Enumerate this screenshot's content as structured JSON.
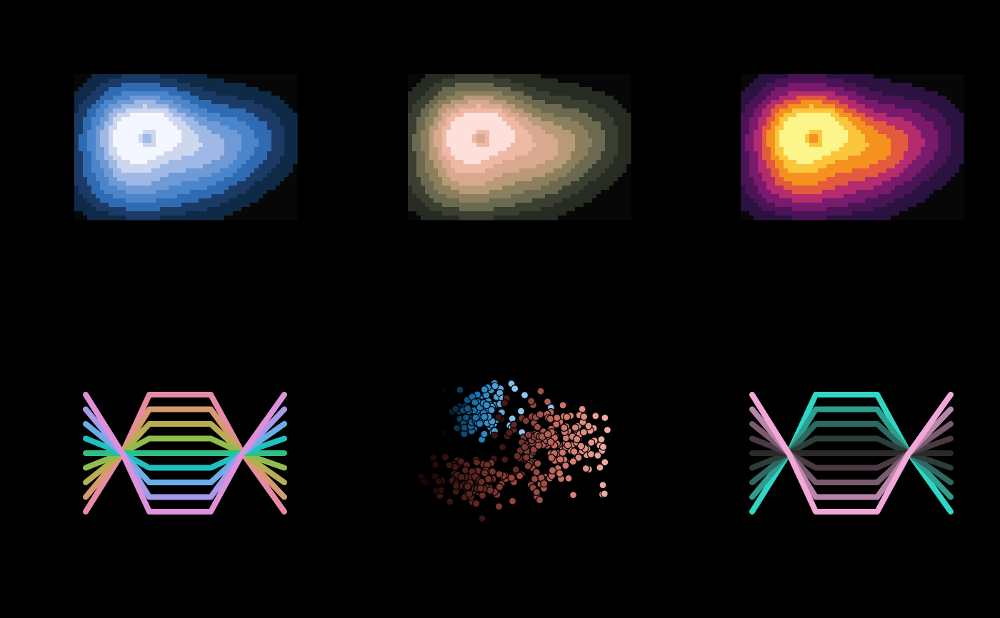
{
  "chart_data": [
    {
      "id": "kde-blues",
      "type": "heatmap",
      "title": "",
      "xlabel": "",
      "ylabel": "",
      "grid": false,
      "legend": "none",
      "levels": 7,
      "palette": [
        "#070707",
        "#0f2a47",
        "#1b3b66",
        "#2f6bb3",
        "#4b86cc",
        "#6f9ad6",
        "#9fb8e6",
        "#cdd8ef",
        "#f4f7ff"
      ]
    },
    {
      "id": "kde-pinkgreen",
      "type": "heatmap",
      "title": "",
      "xlabel": "",
      "ylabel": "",
      "grid": false,
      "legend": "none",
      "levels": 7,
      "palette": [
        "#070707",
        "#272c23",
        "#3a3f31",
        "#6b6a50",
        "#8c7f5e",
        "#b89a78",
        "#d9a98f",
        "#f0b9a6",
        "#fde0da"
      ]
    },
    {
      "id": "kde-magma",
      "type": "heatmap",
      "title": "",
      "xlabel": "",
      "ylabel": "",
      "grid": false,
      "legend": "none",
      "levels": 7,
      "palette": [
        "#070707",
        "#2b1240",
        "#4a1457",
        "#7a1a6c",
        "#b42b6e",
        "#e35a3c",
        "#f5921f",
        "#fbc63b",
        "#fbf58a"
      ]
    },
    {
      "id": "lines-rainbow",
      "type": "line",
      "title": "",
      "xlabel": "",
      "ylabel": "",
      "grid": false,
      "legend": "none",
      "x": [
        0,
        1,
        2,
        3,
        4,
        5
      ],
      "series": [
        {
          "values": [
            -4,
            0,
            4,
            4,
            0,
            -4
          ],
          "color": "#e88aa6"
        },
        {
          "values": [
            -3,
            0,
            3,
            3,
            0,
            -3
          ],
          "color": "#d69a6e"
        },
        {
          "values": [
            -2,
            0,
            2,
            2,
            0,
            -2
          ],
          "color": "#b7ad52"
        },
        {
          "values": [
            -1,
            0,
            1,
            1,
            0,
            -1
          ],
          "color": "#8fbc4d"
        },
        {
          "values": [
            0,
            0,
            0,
            0,
            0,
            0
          ],
          "color": "#2fbf84"
        },
        {
          "values": [
            1,
            0,
            -1,
            -1,
            0,
            1
          ],
          "color": "#20c0c0"
        },
        {
          "values": [
            2,
            0,
            -2,
            -2,
            0,
            2
          ],
          "color": "#6aaee8"
        },
        {
          "values": [
            3,
            0,
            -3,
            -3,
            0,
            3
          ],
          "color": "#a79ae8"
        },
        {
          "values": [
            4,
            0,
            -4,
            -4,
            0,
            4
          ],
          "color": "#de90da"
        }
      ],
      "ylim": [
        -4,
        4
      ]
    },
    {
      "id": "scatter-clusters",
      "type": "scatter",
      "title": "",
      "xlabel": "",
      "ylabel": "",
      "grid": false,
      "legend": "none",
      "groups": [
        {
          "color_light": "#8cc9f2",
          "color_dark": "#000000",
          "color_mid": "#1a7fbf",
          "center": [
            -1.6,
            1.7
          ],
          "spread": [
            0.75,
            0.55
          ],
          "count": 120
        },
        {
          "color_light": "#f2b1a6",
          "color_dark": "#3a1512",
          "color_mid": "#c86a5f",
          "center": [
            1.5,
            0.4
          ],
          "spread": [
            1.1,
            0.9
          ],
          "count": 200
        },
        {
          "color_light": "#a04a3f",
          "color_dark": "#1a0806",
          "color_mid": "#5e2520",
          "center": [
            -1.8,
            -1.2
          ],
          "spread": [
            0.9,
            0.45
          ],
          "count": 110
        }
      ],
      "xlim": [
        -4.5,
        4.5
      ],
      "ylim": [
        -3,
        3
      ]
    },
    {
      "id": "lines-teal-pink",
      "type": "line",
      "title": "",
      "xlabel": "",
      "ylabel": "",
      "grid": false,
      "legend": "none",
      "x": [
        0,
        1,
        2,
        3,
        4,
        5
      ],
      "series": [
        {
          "values": [
            -4,
            0,
            4,
            4,
            0,
            -4
          ],
          "color": "#2fd6c6"
        },
        {
          "values": [
            -3,
            0,
            3,
            3,
            0,
            -3
          ],
          "color": "#2e9e8e"
        },
        {
          "values": [
            -2,
            0,
            2,
            2,
            0,
            -2
          ],
          "color": "#2c6a61"
        },
        {
          "values": [
            -1,
            0,
            1,
            1,
            0,
            -1
          ],
          "color": "#2a3d3a"
        },
        {
          "values": [
            0,
            0,
            0,
            0,
            0,
            0
          ],
          "color": "#2a2a2a"
        },
        {
          "values": [
            1,
            0,
            -1,
            -1,
            0,
            1
          ],
          "color": "#4a3a44"
        },
        {
          "values": [
            2,
            0,
            -2,
            -2,
            0,
            2
          ],
          "color": "#7a5a6e"
        },
        {
          "values": [
            3,
            0,
            -3,
            -3,
            0,
            3
          ],
          "color": "#b886a8"
        },
        {
          "values": [
            4,
            0,
            -4,
            -4,
            0,
            4
          ],
          "color": "#f2a7d8"
        }
      ],
      "ylim": [
        -4,
        4
      ]
    }
  ]
}
